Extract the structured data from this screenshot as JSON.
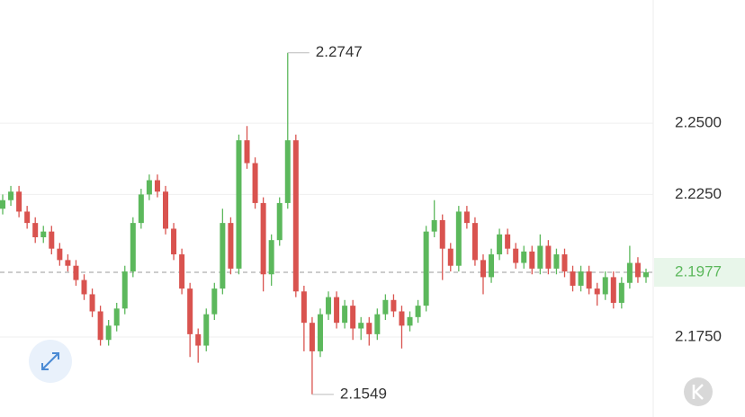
{
  "chart_data": {
    "type": "candlestick",
    "up_color": "#5cb85c",
    "down_color": "#d9534f",
    "ylim": [
      2.1498,
      2.2932
    ],
    "yticks": [
      {
        "value": 2.175,
        "label": "2.1750"
      },
      {
        "value": 2.225,
        "label": "2.2250"
      },
      {
        "value": 2.25,
        "label": "2.2500"
      }
    ],
    "grid": true,
    "open": [
      2.22,
      2.223,
      2.226,
      2.219,
      2.215,
      2.21,
      2.212,
      2.206,
      2.202,
      2.2,
      2.195,
      2.19,
      2.184,
      2.174,
      2.179,
      2.185,
      2.198,
      2.215,
      2.225,
      2.23,
      2.226,
      2.213,
      2.204,
      2.192,
      2.176,
      2.172,
      2.183,
      2.192,
      2.215,
      2.199,
      2.244,
      2.236,
      2.222,
      2.197,
      2.209,
      2.222,
      2.244,
      2.191,
      2.18,
      2.17,
      2.183,
      2.189,
      2.18,
      2.186,
      2.178,
      2.18,
      2.176,
      2.183,
      2.188,
      2.184,
      2.179,
      2.182,
      2.186,
      2.212,
      2.216,
      2.206,
      2.2,
      2.219,
      2.215,
      2.202,
      2.196,
      2.204,
      2.211,
      2.206,
      2.201,
      2.205,
      2.199,
      2.207,
      2.199,
      2.204,
      2.198,
      2.193,
      2.198,
      2.192,
      2.19,
      2.196,
      2.187,
      2.194,
      2.201,
      2.196
    ],
    "high": [
      2.225,
      2.228,
      2.228,
      2.221,
      2.217,
      2.214,
      2.214,
      2.208,
      2.204,
      2.202,
      2.197,
      2.192,
      2.186,
      2.181,
      2.187,
      2.2,
      2.217,
      2.227,
      2.232,
      2.232,
      2.228,
      2.215,
      2.206,
      2.194,
      2.178,
      2.185,
      2.194,
      2.22,
      2.217,
      2.246,
      2.249,
      2.238,
      2.224,
      2.211,
      2.224,
      2.2747,
      2.246,
      2.193,
      2.182,
      2.185,
      2.191,
      2.191,
      2.188,
      2.188,
      2.182,
      2.182,
      2.185,
      2.19,
      2.19,
      2.186,
      2.184,
      2.188,
      2.214,
      2.223,
      2.218,
      2.208,
      2.221,
      2.221,
      2.217,
      2.204,
      2.206,
      2.213,
      2.213,
      2.208,
      2.207,
      2.207,
      2.211,
      2.209,
      2.206,
      2.206,
      2.2,
      2.2,
      2.2,
      2.194,
      2.198,
      2.198,
      2.196,
      2.207,
      2.203,
      2.199
    ],
    "low": [
      2.218,
      2.221,
      2.217,
      2.213,
      2.208,
      2.208,
      2.204,
      2.2,
      2.198,
      2.193,
      2.188,
      2.182,
      2.172,
      2.172,
      2.177,
      2.183,
      2.196,
      2.213,
      2.223,
      2.224,
      2.211,
      2.202,
      2.19,
      2.168,
      2.166,
      2.17,
      2.181,
      2.19,
      2.197,
      2.197,
      2.234,
      2.22,
      2.191,
      2.193,
      2.207,
      2.22,
      2.189,
      2.17,
      2.1549,
      2.168,
      2.181,
      2.178,
      2.178,
      2.174,
      2.174,
      2.172,
      2.174,
      2.181,
      2.182,
      2.171,
      2.177,
      2.18,
      2.184,
      2.21,
      2.195,
      2.198,
      2.198,
      2.213,
      2.2,
      2.19,
      2.194,
      2.202,
      2.204,
      2.199,
      2.199,
      2.197,
      2.197,
      2.197,
      2.197,
      2.196,
      2.191,
      2.191,
      2.19,
      2.186,
      2.188,
      2.185,
      2.185,
      2.192,
      2.194,
      2.194
    ],
    "close": [
      2.223,
      2.226,
      2.219,
      2.215,
      2.21,
      2.212,
      2.206,
      2.202,
      2.2,
      2.195,
      2.19,
      2.184,
      2.174,
      2.179,
      2.185,
      2.198,
      2.215,
      2.225,
      2.23,
      2.226,
      2.213,
      2.204,
      2.192,
      2.176,
      2.172,
      2.183,
      2.192,
      2.215,
      2.199,
      2.244,
      2.236,
      2.222,
      2.197,
      2.209,
      2.222,
      2.244,
      2.191,
      2.18,
      2.17,
      2.183,
      2.189,
      2.18,
      2.186,
      2.178,
      2.18,
      2.176,
      2.183,
      2.188,
      2.184,
      2.179,
      2.182,
      2.186,
      2.212,
      2.216,
      2.206,
      2.2,
      2.219,
      2.215,
      2.202,
      2.196,
      2.204,
      2.211,
      2.206,
      2.201,
      2.205,
      2.199,
      2.207,
      2.199,
      2.204,
      2.198,
      2.193,
      2.198,
      2.192,
      2.19,
      2.196,
      2.187,
      2.194,
      2.201,
      2.196,
      2.1977
    ]
  }
}
